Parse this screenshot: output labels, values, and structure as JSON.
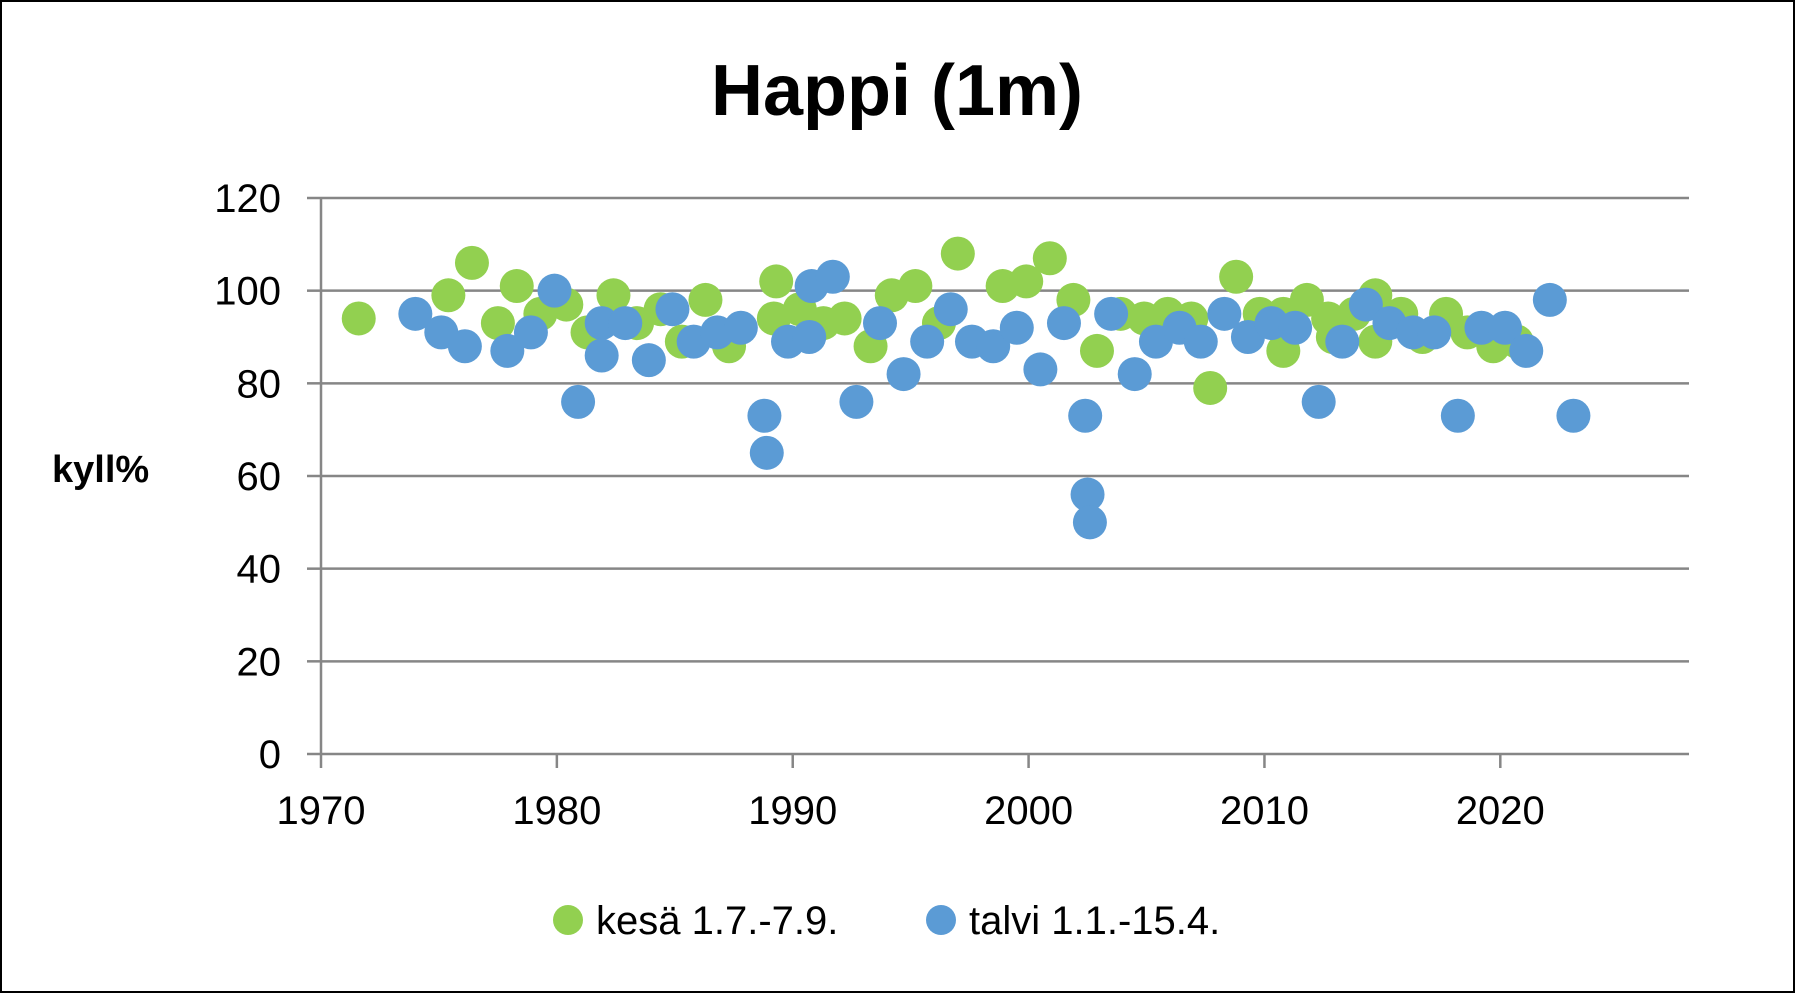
{
  "chart_data": {
    "type": "scatter",
    "title": "Happi (1m)",
    "xlabel": "",
    "ylabel": "kyll%",
    "xlim": [
      1970,
      2028
    ],
    "ylim": [
      0,
      120
    ],
    "x_ticks": [
      1970,
      1980,
      1990,
      2000,
      2010,
      2020
    ],
    "y_ticks": [
      0,
      20,
      40,
      60,
      80,
      100,
      120
    ],
    "grid": "horizontal",
    "legend": "bottom",
    "series": [
      {
        "name": "kesä 1.7.-7.9.",
        "color": "#92D050",
        "points": [
          [
            1971.6,
            94
          ],
          [
            1975.4,
            99
          ],
          [
            1976.4,
            106
          ],
          [
            1977.5,
            93
          ],
          [
            1978.3,
            101
          ],
          [
            1979.3,
            95
          ],
          [
            1980.4,
            97
          ],
          [
            1981.3,
            91
          ],
          [
            1982.4,
            99
          ],
          [
            1983.4,
            93
          ],
          [
            1984.4,
            96
          ],
          [
            1985.3,
            89
          ],
          [
            1986.3,
            98
          ],
          [
            1987.3,
            88
          ],
          [
            1989.2,
            94
          ],
          [
            1989.3,
            102
          ],
          [
            1990.3,
            96
          ],
          [
            1991.3,
            93
          ],
          [
            1992.2,
            94
          ],
          [
            1993.3,
            88
          ],
          [
            1994.2,
            99
          ],
          [
            1995.2,
            101
          ],
          [
            1996.2,
            93
          ],
          [
            1997.0,
            108
          ],
          [
            1998.9,
            101
          ],
          [
            1999.9,
            102
          ],
          [
            2000.9,
            107
          ],
          [
            2001.9,
            98
          ],
          [
            2002.9,
            87
          ],
          [
            2003.9,
            95
          ],
          [
            2004.9,
            94
          ],
          [
            2005.9,
            95
          ],
          [
            2006.9,
            94
          ],
          [
            2007.7,
            79
          ],
          [
            2008.8,
            103
          ],
          [
            2009.8,
            95
          ],
          [
            2010.8,
            95
          ],
          [
            2010.8,
            87
          ],
          [
            2011.8,
            98
          ],
          [
            2012.7,
            94
          ],
          [
            2012.9,
            90
          ],
          [
            2013.8,
            95
          ],
          [
            2014.7,
            99
          ],
          [
            2014.7,
            89
          ],
          [
            2015.8,
            95
          ],
          [
            2016.7,
            90
          ],
          [
            2017.7,
            95
          ],
          [
            2018.6,
            91
          ],
          [
            2019.7,
            88
          ],
          [
            2020.7,
            89
          ]
        ]
      },
      {
        "name": "talvi 1.1.-15.4.",
        "color": "#5B9BD5",
        "points": [
          [
            1974.0,
            95
          ],
          [
            1975.1,
            91
          ],
          [
            1976.1,
            88
          ],
          [
            1977.9,
            87
          ],
          [
            1978.9,
            91
          ],
          [
            1979.9,
            100
          ],
          [
            1980.9,
            76
          ],
          [
            1981.9,
            93
          ],
          [
            1981.9,
            86
          ],
          [
            1982.9,
            93
          ],
          [
            1983.9,
            85
          ],
          [
            1984.9,
            96
          ],
          [
            1985.8,
            89
          ],
          [
            1986.8,
            91
          ],
          [
            1987.8,
            92
          ],
          [
            1988.8,
            73
          ],
          [
            1988.9,
            65
          ],
          [
            1989.8,
            89
          ],
          [
            1990.7,
            90
          ],
          [
            1990.8,
            101
          ],
          [
            1991.7,
            103
          ],
          [
            1992.7,
            76
          ],
          [
            1993.7,
            93
          ],
          [
            1994.7,
            82
          ],
          [
            1995.7,
            89
          ],
          [
            1996.7,
            96
          ],
          [
            1997.6,
            89
          ],
          [
            1998.5,
            88
          ],
          [
            1999.5,
            92
          ],
          [
            2000.5,
            83
          ],
          [
            2001.5,
            93
          ],
          [
            2002.4,
            73
          ],
          [
            2002.5,
            56
          ],
          [
            2002.6,
            50
          ],
          [
            2003.5,
            95
          ],
          [
            2004.5,
            82
          ],
          [
            2005.4,
            89
          ],
          [
            2006.4,
            92
          ],
          [
            2007.3,
            89
          ],
          [
            2008.3,
            95
          ],
          [
            2009.3,
            90
          ],
          [
            2010.3,
            93
          ],
          [
            2011.3,
            92
          ],
          [
            2012.3,
            76
          ],
          [
            2013.3,
            89
          ],
          [
            2014.3,
            97
          ],
          [
            2015.3,
            93
          ],
          [
            2016.3,
            91
          ],
          [
            2017.2,
            91
          ],
          [
            2018.2,
            73
          ],
          [
            2019.2,
            92
          ],
          [
            2020.2,
            92
          ],
          [
            2021.1,
            87
          ],
          [
            2022.1,
            98
          ],
          [
            2023.1,
            73
          ]
        ]
      }
    ]
  }
}
